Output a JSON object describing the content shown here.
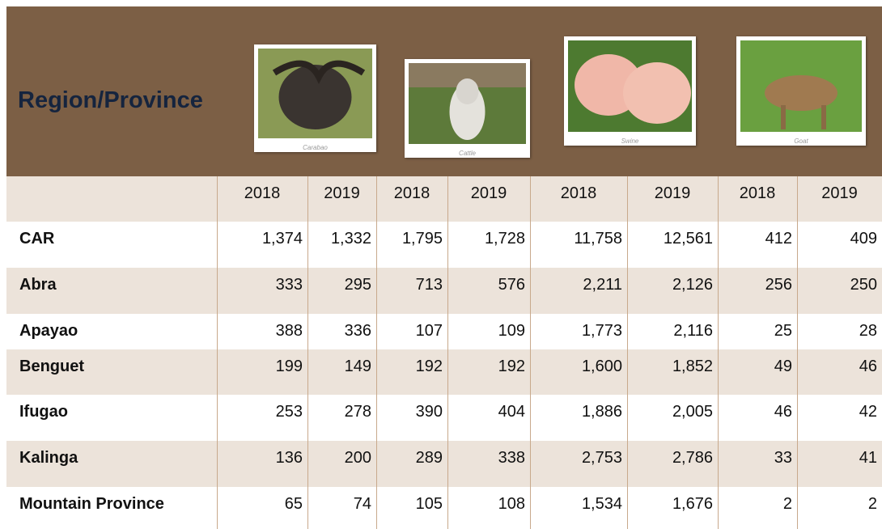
{
  "header": {
    "title": "Region/Province",
    "animals": [
      {
        "caption": "Carabao"
      },
      {
        "caption": "Cattle"
      },
      {
        "caption": "Swine"
      },
      {
        "caption": "Goat"
      }
    ]
  },
  "table": {
    "years": [
      "2018",
      "2019",
      "2018",
      "2019",
      "2018",
      "2019",
      "2018",
      "2019"
    ],
    "rows": [
      {
        "name": "CAR",
        "values": [
          "1,374",
          "1,332",
          "1,795",
          "1,728",
          "11,758",
          "12,561",
          "412",
          "409"
        ]
      },
      {
        "name": "Abra",
        "values": [
          "333",
          "295",
          "713",
          "576",
          "2,211",
          "2,126",
          "256",
          "250"
        ]
      },
      {
        "name": "Apayao",
        "values": [
          "388",
          "336",
          "107",
          "109",
          "1,773",
          "2,116",
          "25",
          "28"
        ]
      },
      {
        "name": "Benguet",
        "values": [
          "199",
          "149",
          "192",
          "192",
          "1,600",
          "1,852",
          "49",
          "46"
        ]
      },
      {
        "name": "Ifugao",
        "values": [
          "253",
          "278",
          "390",
          "404",
          "1,886",
          "2,005",
          "46",
          "42"
        ]
      },
      {
        "name": "Kalinga",
        "values": [
          "136",
          "200",
          "289",
          "338",
          "2,753",
          "2,786",
          "33",
          "41"
        ]
      },
      {
        "name": "Mountain Province",
        "values": [
          "65",
          "74",
          "105",
          "108",
          "1,534",
          "1,676",
          "2",
          "2"
        ]
      }
    ]
  }
}
